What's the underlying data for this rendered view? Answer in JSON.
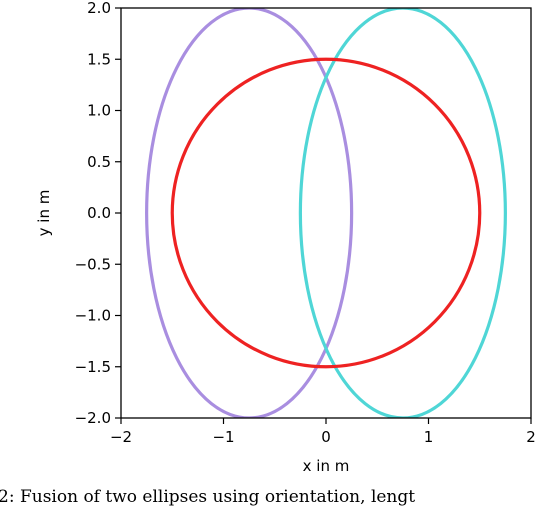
{
  "chart_data": {
    "type": "line",
    "xlabel": "x in m",
    "ylabel": "y in m",
    "xlim": [
      -2,
      2
    ],
    "ylim": [
      -2,
      2
    ],
    "xticks": [
      -2,
      -1,
      0,
      1,
      2
    ],
    "xtick_labels": [
      "−2",
      "−1",
      "0",
      "1",
      "2"
    ],
    "yticks": [
      2.0,
      1.5,
      1.0,
      0.5,
      0.0,
      -0.5,
      -1.0,
      -1.5,
      -2.0
    ],
    "ytick_labels": [
      "2.0",
      "1.5",
      "1.0",
      "0.5",
      "0.0",
      "−0.5",
      "−1.0",
      "−1.5",
      "−2.0"
    ],
    "grid": false,
    "series": [
      {
        "shape": "ellipse",
        "center": [
          -0.75,
          0
        ],
        "semi_axes": [
          1.0,
          2.0
        ],
        "color": "#a98ee0"
      },
      {
        "shape": "ellipse",
        "center": [
          0.75,
          0
        ],
        "semi_axes": [
          1.0,
          2.0
        ],
        "color": "#4fd6d6"
      },
      {
        "shape": "circle",
        "center": [
          0,
          0
        ],
        "semi_axes": [
          1.5,
          1.5
        ],
        "color": "#ee2222"
      }
    ]
  },
  "caption": "2: Fusion of two ellipses using orientation, lengt"
}
